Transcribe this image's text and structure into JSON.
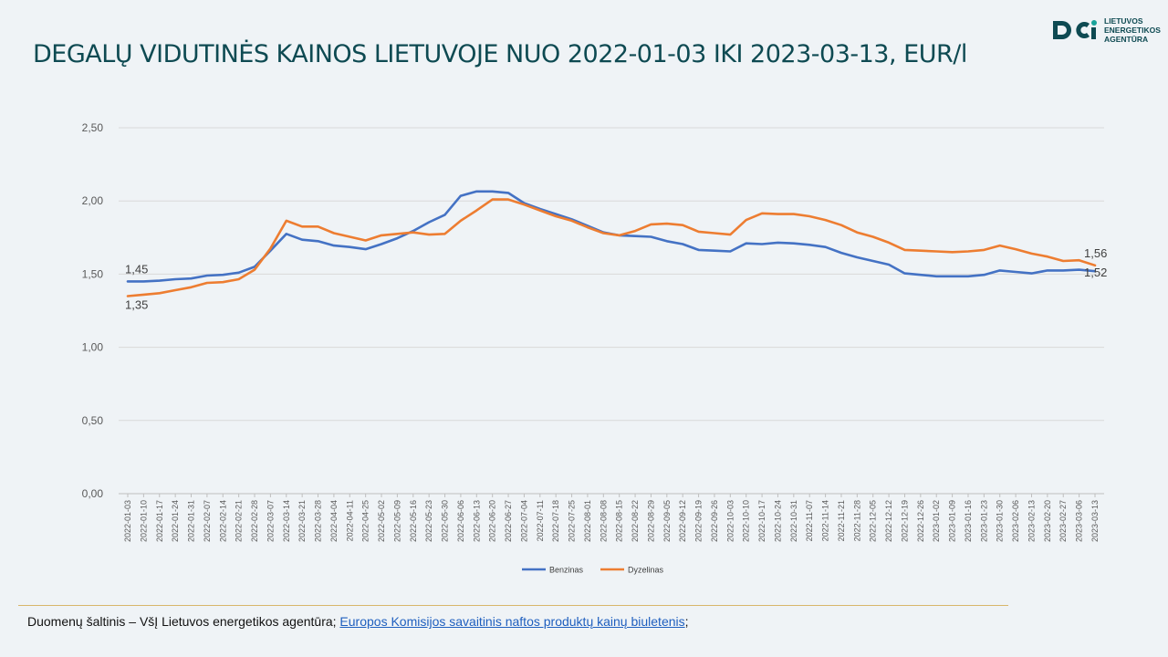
{
  "header": {
    "title": "DEGALŲ VIDUTINĖS KAINOS LIETUVOJE NUO 2022-01-03 IKI 2023-03-13, EUR/l"
  },
  "logo": {
    "line1": "LIETUVOS",
    "line2": "ENERGETIKOS",
    "line3": "AGENTŪRA",
    "color": "#0e4a52"
  },
  "footer": {
    "source_prefix": "Duomenų šaltinis – VšĮ Lietuvos energetikos agentūra; ",
    "source_link": "Europos Komisijos savaitinis naftos produktų kainų biuletenis",
    "source_suffix": ";"
  },
  "chart_data": {
    "type": "line",
    "title": "DEGALŲ VIDUTINĖS KAINOS LIETUVOJE NUO 2022-01-03 IKI 2023-03-13, EUR/l",
    "ylim": [
      0,
      2.5
    ],
    "yticks": [
      "0,00",
      "0,50",
      "1,00",
      "1,50",
      "2,00",
      "2,50"
    ],
    "ytick_values": [
      0,
      0.5,
      1.0,
      1.5,
      2.0,
      2.5
    ],
    "grid": true,
    "legend_position": "bottom",
    "x": [
      "2022-01-03",
      "2022-01-10",
      "2022-01-17",
      "2022-01-24",
      "2022-01-31",
      "2022-02-07",
      "2022-02-14",
      "2022-02-21",
      "2022-02-28",
      "2022-03-07",
      "2022-03-14",
      "2022-03-21",
      "2022-03-28",
      "2022-04-04",
      "2022-04-11",
      "2022-04-25",
      "2022-05-02",
      "2022-05-09",
      "2022-05-16",
      "2022-05-23",
      "2022-05-30",
      "2022-06-06",
      "2022-06-13",
      "2022-06-20",
      "2022-06-27",
      "2022-07-04",
      "2022-07-11",
      "2022-07-18",
      "2022-07-25",
      "2022-08-01",
      "2022-08-08",
      "2022-08-15",
      "2022-08-22",
      "2022-08-29",
      "2022-09-05",
      "2022-09-12",
      "2022-09-19",
      "2022-09-26",
      "2022-10-03",
      "2022-10-10",
      "2022-10-17",
      "2022-10-24",
      "2022-10-31",
      "2022-11-07",
      "2022-11-14",
      "2022-11-21",
      "2022-11-28",
      "2022-12-05",
      "2022-12-12",
      "2022-12-19",
      "2022-12-26",
      "2023-01-02",
      "2023-01-09",
      "2023-01-16",
      "2023-01-23",
      "2023-01-30",
      "2023-02-06",
      "2023-02-13",
      "2023-02-20",
      "2023-02-27",
      "2023-03-06",
      "2023-03-13"
    ],
    "series": [
      {
        "name": "Benzinas",
        "color": "#4472c4",
        "values": [
          1.45,
          1.45,
          1.455,
          1.465,
          1.47,
          1.49,
          1.495,
          1.51,
          1.55,
          1.66,
          1.775,
          1.735,
          1.725,
          1.695,
          1.685,
          1.67,
          1.705,
          1.745,
          1.795,
          1.855,
          1.905,
          2.035,
          2.065,
          2.065,
          2.055,
          1.985,
          1.945,
          1.91,
          1.875,
          1.83,
          1.785,
          1.765,
          1.76,
          1.755,
          1.725,
          1.705,
          1.665,
          1.66,
          1.655,
          1.71,
          1.705,
          1.715,
          1.71,
          1.7,
          1.685,
          1.645,
          1.615,
          1.59,
          1.565,
          1.505,
          1.495,
          1.485,
          1.485,
          1.485,
          1.495,
          1.525,
          1.515,
          1.505,
          1.525,
          1.525,
          1.53,
          1.52
        ]
      },
      {
        "name": "Dyzelinas",
        "color": "#ed7d31",
        "values": [
          1.35,
          1.36,
          1.37,
          1.39,
          1.41,
          1.44,
          1.445,
          1.465,
          1.53,
          1.675,
          1.865,
          1.825,
          1.825,
          1.78,
          1.755,
          1.73,
          1.765,
          1.775,
          1.785,
          1.77,
          1.775,
          1.865,
          1.935,
          2.01,
          2.01,
          1.975,
          1.935,
          1.895,
          1.865,
          1.82,
          1.78,
          1.765,
          1.795,
          1.84,
          1.845,
          1.835,
          1.79,
          1.78,
          1.77,
          1.87,
          1.915,
          1.91,
          1.91,
          1.895,
          1.87,
          1.835,
          1.785,
          1.755,
          1.715,
          1.665,
          1.66,
          1.655,
          1.65,
          1.655,
          1.665,
          1.695,
          1.67,
          1.64,
          1.62,
          1.59,
          1.595,
          1.56
        ]
      }
    ],
    "annotations": [
      {
        "series": "Benzinas",
        "index": 0,
        "text": "1,45"
      },
      {
        "series": "Dyzelinas",
        "index": 0,
        "text": "1,35"
      },
      {
        "series": "Dyzelinas",
        "index": 61,
        "text": "1,56"
      },
      {
        "series": "Benzinas",
        "index": 61,
        "text": "1,52"
      }
    ]
  }
}
